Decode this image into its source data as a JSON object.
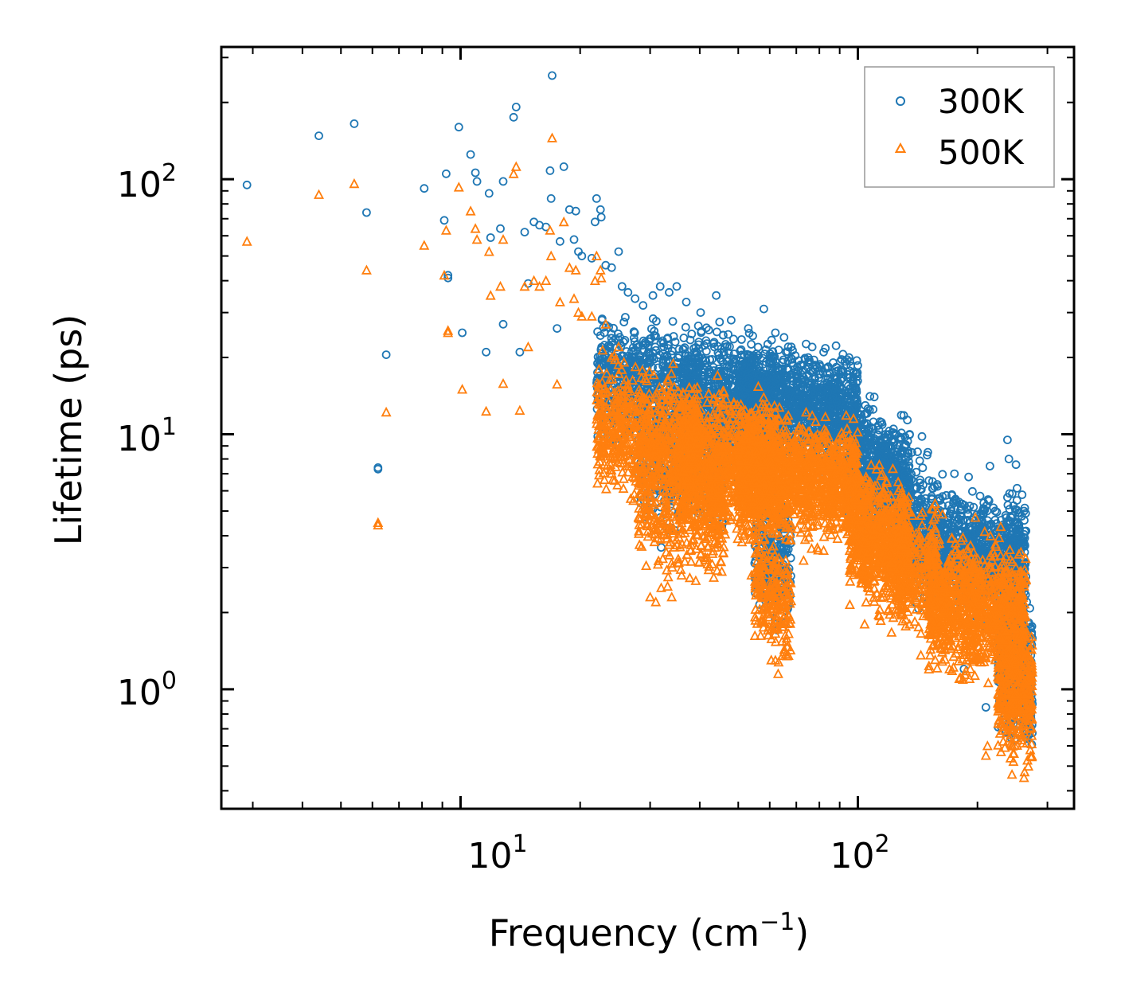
{
  "chart_data": {
    "type": "scatter",
    "xlabel": "Frequency (cm",
    "xlabel_exponent": "−1",
    "xlabel_suffix": ")",
    "ylabel": "Lifetime (ps)",
    "xscale": "log",
    "yscale": "log",
    "xlim": [
      2.5,
      350
    ],
    "ylim": [
      0.34,
      330
    ],
    "x_ticks": [
      {
        "base": "10",
        "exp": "1",
        "value": 10
      },
      {
        "base": "10",
        "exp": "2",
        "value": 100
      }
    ],
    "y_ticks": [
      {
        "base": "10",
        "exp": "0",
        "value": 1
      },
      {
        "base": "10",
        "exp": "1",
        "value": 10
      },
      {
        "base": "10",
        "exp": "2",
        "value": 100
      }
    ],
    "legend": {
      "placement": "top-right"
    },
    "series": [
      {
        "name": "300K",
        "marker": "circle-open",
        "color": "#1f77b4",
        "points": [
          [
            2.9,
            95
          ],
          [
            4.4,
            148
          ],
          [
            5.4,
            165
          ],
          [
            5.8,
            74
          ],
          [
            6.2,
            7.4
          ],
          [
            6.2,
            7.3
          ],
          [
            6.5,
            20.5
          ],
          [
            8.1,
            92
          ],
          [
            9.1,
            69
          ],
          [
            9.2,
            105
          ],
          [
            9.3,
            42
          ],
          [
            9.3,
            41
          ],
          [
            9.9,
            160
          ],
          [
            10.1,
            25
          ],
          [
            10.6,
            125
          ],
          [
            10.9,
            106
          ],
          [
            11.0,
            98
          ],
          [
            11.6,
            21
          ],
          [
            11.8,
            88
          ],
          [
            11.9,
            59
          ],
          [
            12.6,
            64
          ],
          [
            12.8,
            98
          ],
          [
            12.8,
            27
          ],
          [
            13.6,
            175
          ],
          [
            13.8,
            192
          ],
          [
            14.1,
            21
          ],
          [
            14.5,
            62
          ],
          [
            14.8,
            39
          ],
          [
            15.3,
            68
          ],
          [
            15.8,
            66
          ],
          [
            16.4,
            65
          ],
          [
            16.8,
            108
          ],
          [
            16.9,
            84
          ],
          [
            17.0,
            255
          ],
          [
            17.5,
            26
          ],
          [
            17.8,
            57
          ],
          [
            18.2,
            112
          ],
          [
            18.8,
            76
          ],
          [
            19.3,
            58
          ],
          [
            19.5,
            75
          ],
          [
            19.8,
            52
          ],
          [
            20.2,
            50
          ],
          [
            21.4,
            49
          ],
          [
            21.8,
            68
          ],
          [
            22.0,
            84
          ],
          [
            22.5,
            76
          ],
          [
            22.6,
            71
          ],
          [
            23.2,
            46
          ],
          [
            24.0,
            45
          ],
          [
            25.0,
            52
          ],
          [
            25.5,
            38
          ],
          [
            26.4,
            36
          ],
          [
            27.5,
            34
          ],
          [
            28.8,
            32
          ],
          [
            30.5,
            35
          ],
          [
            31.8,
            38
          ],
          [
            33.5,
            36
          ],
          [
            35.0,
            38
          ],
          [
            37.0,
            33
          ],
          [
            40.2,
            30
          ],
          [
            44.0,
            35
          ],
          [
            48.0,
            28
          ],
          [
            53.0,
            26
          ],
          [
            58.0,
            31
          ],
          [
            62.0,
            25
          ],
          [
            68.0,
            22
          ],
          [
            75.0,
            20
          ],
          [
            82.0,
            21
          ],
          [
            95.0,
            20
          ],
          [
            110,
            14
          ],
          [
            125,
            10
          ],
          [
            135,
            10
          ],
          [
            145,
            9.8
          ],
          [
            150,
            8.5
          ],
          [
            175,
            7
          ],
          [
            190,
            6.8
          ],
          [
            215,
            7.5
          ],
          [
            238,
            9.5
          ],
          [
            240,
            8
          ],
          [
            250,
            7.6
          ],
          [
            262,
            5
          ],
          [
            185,
            1.2
          ],
          [
            210,
            0.85
          ],
          [
            228,
            1.4
          ],
          [
            245,
            0.95
          ],
          [
            255,
            1.2
          ],
          [
            265,
            0.8
          ],
          [
            270,
            1.8
          ],
          [
            32,
            3.6
          ],
          [
            34,
            5
          ],
          [
            36,
            4.8
          ],
          [
            62,
            1.8
          ],
          [
            65,
            2.1
          ],
          [
            60,
            2.5
          ],
          [
            28,
            7
          ],
          [
            30,
            6.5
          ]
        ],
        "clusters": [
          {
            "x": [
              22,
              40
            ],
            "y": [
              8,
              30
            ],
            "n": 700,
            "slope": -0.55
          },
          {
            "x": [
              28,
              46
            ],
            "y": [
              3.8,
              16
            ],
            "n": 420,
            "slope": -0.8
          },
          {
            "x": [
              36,
              62
            ],
            "y": [
              6,
              28
            ],
            "n": 900,
            "slope": -0.35
          },
          {
            "x": [
              50,
              100
            ],
            "y": [
              7,
              24
            ],
            "n": 1300,
            "slope": -0.2
          },
          {
            "x": [
              55,
              68
            ],
            "y": [
              1.7,
              7
            ],
            "n": 220,
            "slope": -2.0
          },
          {
            "x": [
              95,
              135
            ],
            "y": [
              3.5,
              14
            ],
            "n": 700,
            "slope": -1.4
          },
          {
            "x": [
              125,
              160
            ],
            "y": [
              2.0,
              9
            ],
            "n": 300,
            "slope": -1.8
          },
          {
            "x": [
              150,
              265
            ],
            "y": [
              1.8,
              6.5
            ],
            "n": 1000,
            "slope": -0.3
          },
          {
            "x": [
              225,
              275
            ],
            "y": [
              0.55,
              3.0
            ],
            "n": 400,
            "slope": -2.0
          }
        ]
      },
      {
        "name": "500K",
        "marker": "triangle-open",
        "color": "#ff7f0e",
        "points": [
          [
            2.9,
            57
          ],
          [
            4.4,
            87
          ],
          [
            5.4,
            96
          ],
          [
            5.8,
            44
          ],
          [
            6.2,
            4.5
          ],
          [
            6.2,
            4.4
          ],
          [
            6.5,
            12.2
          ],
          [
            8.1,
            55
          ],
          [
            9.1,
            42
          ],
          [
            9.2,
            63
          ],
          [
            9.3,
            25.5
          ],
          [
            9.3,
            25
          ],
          [
            9.9,
            93
          ],
          [
            10.1,
            15
          ],
          [
            10.6,
            75
          ],
          [
            10.9,
            64
          ],
          [
            11.0,
            58
          ],
          [
            11.6,
            12.3
          ],
          [
            11.8,
            52
          ],
          [
            11.9,
            35
          ],
          [
            12.6,
            38
          ],
          [
            12.8,
            58
          ],
          [
            12.8,
            15.8
          ],
          [
            13.6,
            105
          ],
          [
            13.8,
            112
          ],
          [
            14.1,
            12.4
          ],
          [
            14.5,
            38
          ],
          [
            14.8,
            22
          ],
          [
            15.3,
            40
          ],
          [
            15.8,
            38
          ],
          [
            16.4,
            40
          ],
          [
            16.8,
            63
          ],
          [
            16.9,
            50
          ],
          [
            17.0,
            145
          ],
          [
            17.5,
            15.7
          ],
          [
            17.8,
            33
          ],
          [
            18.2,
            68
          ],
          [
            18.8,
            45
          ],
          [
            19.3,
            34
          ],
          [
            19.5,
            44
          ],
          [
            19.8,
            30
          ],
          [
            20.2,
            29
          ],
          [
            21.4,
            29
          ],
          [
            21.8,
            40
          ],
          [
            22.0,
            50
          ],
          [
            22.5,
            44
          ],
          [
            22.6,
            41
          ],
          [
            23.2,
            27
          ],
          [
            24.0,
            20
          ],
          [
            25.0,
            22
          ],
          [
            31,
            2.2
          ],
          [
            32,
            2.5
          ],
          [
            30,
            2.3
          ],
          [
            34,
            2.3
          ],
          [
            36,
            2.8
          ],
          [
            54,
            2.8
          ],
          [
            62,
            1.3
          ],
          [
            63,
            1.15
          ],
          [
            73,
            3.2
          ],
          [
            82,
            3.5
          ],
          [
            104,
            1.8
          ],
          [
            132,
            3.6
          ],
          [
            170,
            1.2
          ],
          [
            180,
            1.1
          ],
          [
            210,
            0.55
          ],
          [
            212,
            0.6
          ],
          [
            246,
            0.7
          ],
          [
            262,
            0.45
          ],
          [
            270,
            1.1
          ]
        ],
        "clusters": [
          {
            "x": [
              22,
              40
            ],
            "y": [
              5,
              20
            ],
            "n": 700,
            "slope": -0.55
          },
          {
            "x": [
              28,
              46
            ],
            "y": [
              2.5,
              11
            ],
            "n": 420,
            "slope": -0.8
          },
          {
            "x": [
              36,
              62
            ],
            "y": [
              3.5,
              17
            ],
            "n": 900,
            "slope": -0.35
          },
          {
            "x": [
              50,
              100
            ],
            "y": [
              3.5,
              13
            ],
            "n": 1300,
            "slope": -0.2
          },
          {
            "x": [
              55,
              68
            ],
            "y": [
              1.2,
              4.5
            ],
            "n": 220,
            "slope": -2.0
          },
          {
            "x": [
              95,
              135
            ],
            "y": [
              1.8,
              8
            ],
            "n": 700,
            "slope": -1.4
          },
          {
            "x": [
              125,
              160
            ],
            "y": [
              1.4,
              6
            ],
            "n": 300,
            "slope": -1.8
          },
          {
            "x": [
              150,
              265
            ],
            "y": [
              1.0,
              4.5
            ],
            "n": 1000,
            "slope": -0.3
          },
          {
            "x": [
              225,
              275
            ],
            "y": [
              0.45,
              2.2
            ],
            "n": 400,
            "slope": -2.0
          }
        ]
      }
    ]
  }
}
